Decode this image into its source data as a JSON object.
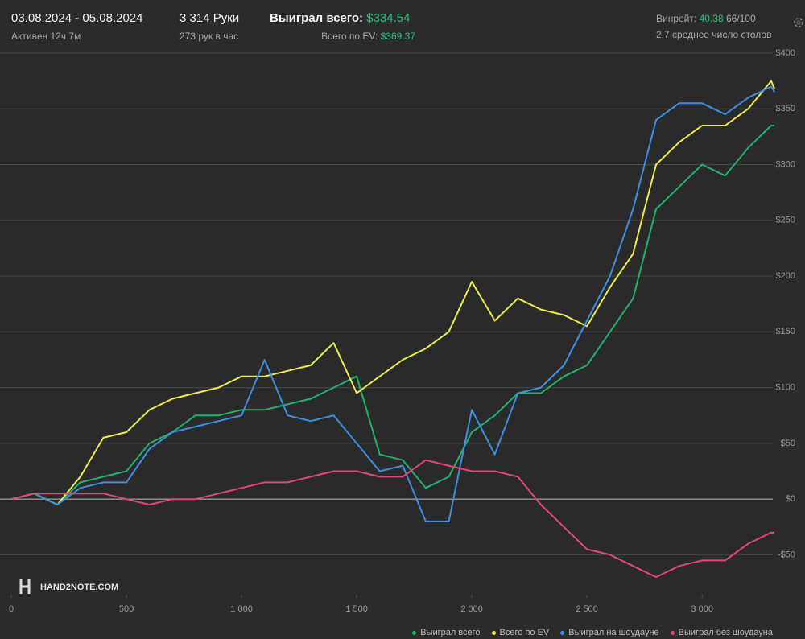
{
  "header": {
    "dates": "03.08.2024 - 05.08.2024",
    "active": "Активен 12ч 7м",
    "hands": "3 314 Руки",
    "rate": "273 рук в час",
    "won_label": "Выиграл всего:",
    "won_value": "$334.54",
    "ev_label": "Всего по EV:",
    "ev_value": "$369.37",
    "winrate_label": "Винрейт:",
    "winrate_value": "40.38",
    "winrate_unit": "66/100",
    "tables": "2.7 среднее число столов",
    "watermark": "HAND2NOTE.COM"
  },
  "chart_data": {
    "type": "line",
    "grid": true,
    "legend": "bottom-right",
    "x": [
      0,
      100,
      200,
      300,
      400,
      500,
      600,
      700,
      800,
      900,
      1000,
      1100,
      1200,
      1300,
      1400,
      1500,
      1600,
      1700,
      1800,
      1900,
      2000,
      2100,
      2200,
      2300,
      2400,
      2500,
      2600,
      2700,
      2800,
      2900,
      3000,
      3100,
      3200,
      3300,
      3314
    ],
    "xlim": [
      0,
      3314
    ],
    "xticks": [
      0,
      500,
      {
        "value": 1000,
        "label": "1 000"
      },
      {
        "value": 1500,
        "label": "1 500"
      },
      {
        "value": 2000,
        "label": "2 000"
      },
      {
        "value": 2500,
        "label": "2 500"
      },
      {
        "value": 3000,
        "label": "3 000"
      }
    ],
    "ylim": [
      -80,
      405
    ],
    "yticks": [
      {
        "value": -50,
        "label": "-$50"
      },
      {
        "value": 0,
        "label": "$0"
      },
      {
        "value": 50,
        "label": "$50"
      },
      {
        "value": 100,
        "label": "$100"
      },
      {
        "value": 150,
        "label": "$150"
      },
      {
        "value": 200,
        "label": "$200"
      },
      {
        "value": 250,
        "label": "$250"
      },
      {
        "value": 300,
        "label": "$300"
      },
      {
        "value": 350,
        "label": "$350"
      },
      {
        "value": 400,
        "label": "$400"
      }
    ],
    "series": [
      {
        "name": "Выиграл всего",
        "color": "#1fb36c",
        "values": [
          0,
          5,
          -5,
          15,
          20,
          25,
          50,
          60,
          75,
          75,
          80,
          80,
          85,
          90,
          100,
          110,
          40,
          35,
          10,
          20,
          60,
          75,
          95,
          95,
          110,
          120,
          150,
          180,
          260,
          280,
          300,
          290,
          315,
          335,
          335
        ]
      },
      {
        "name": "Всего по EV",
        "color": "#ecec4c",
        "values": [
          0,
          5,
          -5,
          20,
          55,
          60,
          80,
          90,
          95,
          100,
          110,
          110,
          115,
          120,
          140,
          95,
          110,
          125,
          135,
          150,
          195,
          160,
          180,
          170,
          165,
          155,
          190,
          220,
          300,
          320,
          335,
          335,
          350,
          375,
          368
        ]
      },
      {
        "name": "Выиграл на шоудауне",
        "color": "#3d8fe2",
        "values": [
          0,
          5,
          -5,
          10,
          15,
          15,
          45,
          60,
          65,
          70,
          75,
          125,
          75,
          70,
          75,
          50,
          25,
          30,
          -20,
          -20,
          80,
          40,
          95,
          100,
          120,
          160,
          200,
          260,
          340,
          355,
          355,
          345,
          360,
          370,
          365
        ]
      },
      {
        "name": "Выиграл без шоудауна",
        "color": "#e2477c",
        "values": [
          0,
          5,
          5,
          5,
          5,
          0,
          -5,
          0,
          0,
          5,
          10,
          15,
          15,
          20,
          25,
          25,
          20,
          20,
          35,
          30,
          25,
          25,
          20,
          -5,
          -25,
          -45,
          -50,
          -60,
          -70,
          -60,
          -55,
          -55,
          -40,
          -30,
          -30
        ]
      }
    ]
  }
}
